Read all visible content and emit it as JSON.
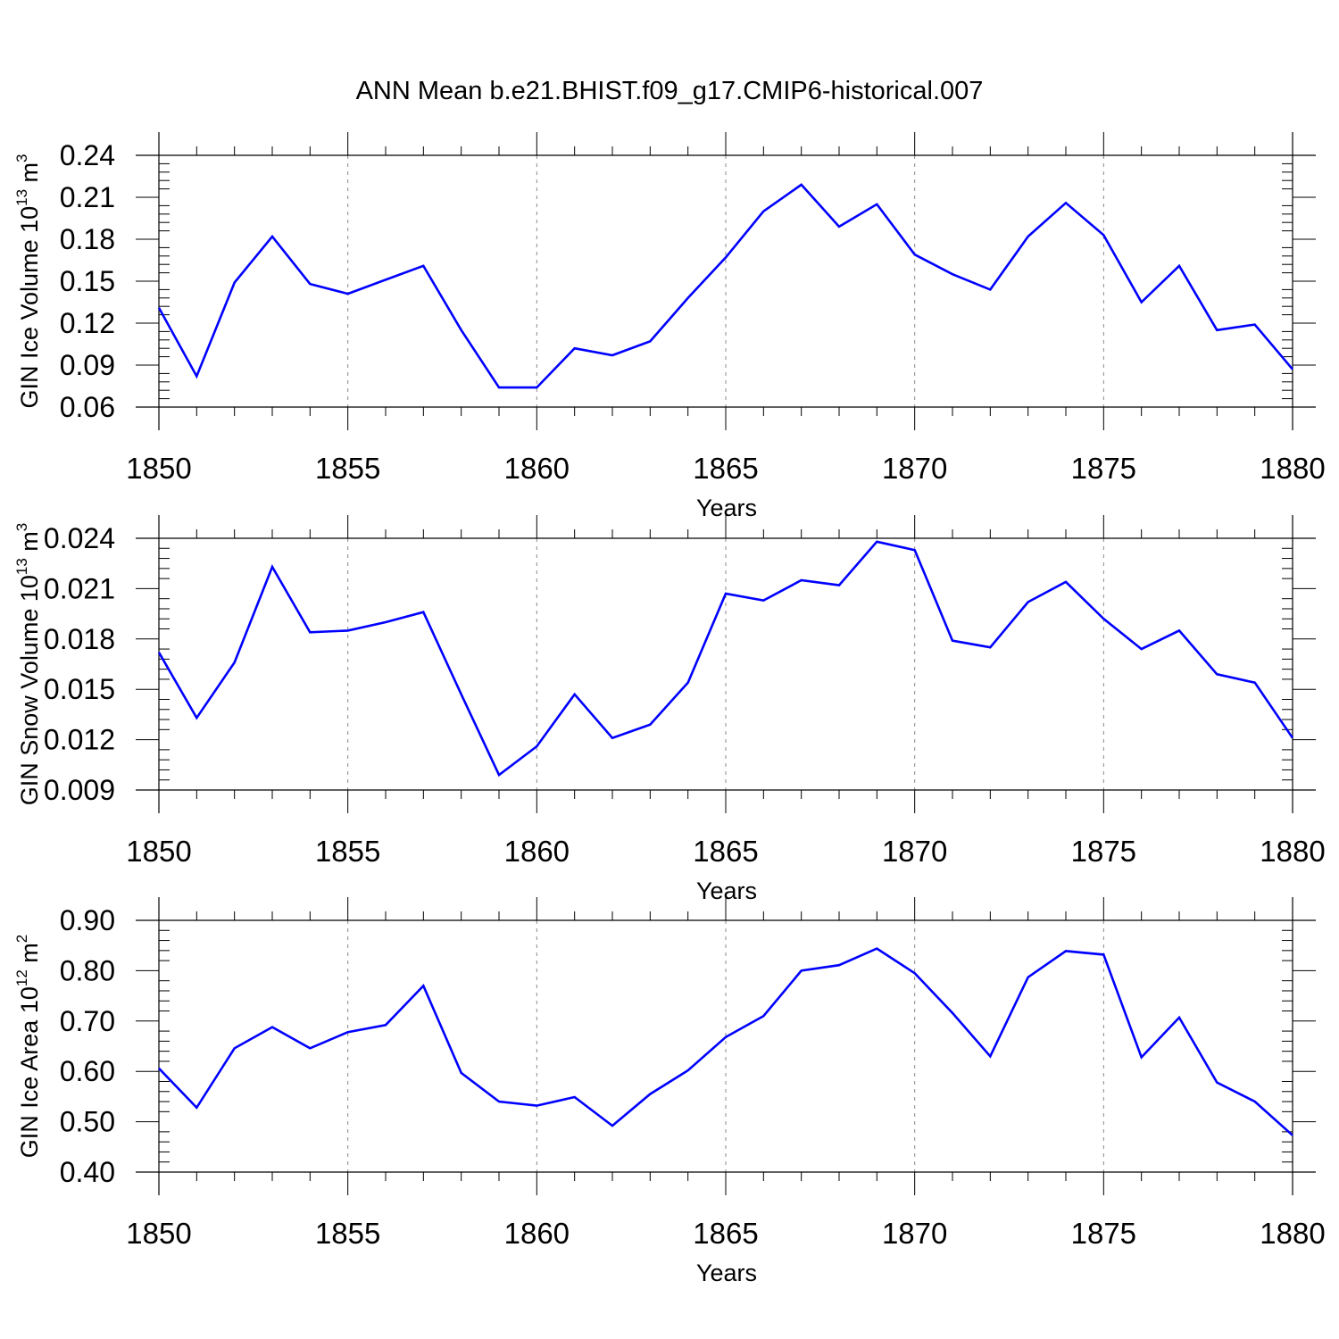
{
  "title": "ANN Mean b.e21.BHIST.f09_g17.CMIP6-historical.007",
  "chart_data": [
    {
      "type": "line",
      "ylabel": "GIN Ice Volume 10",
      "ylabel_sup": "13",
      "ylabel_unit": " m",
      "ylabel_unit_sup": "3",
      "xlabel": "Years",
      "xlim": [
        1850,
        1880
      ],
      "ylim": [
        0.06,
        0.24
      ],
      "yticks": [
        0.06,
        0.09,
        0.12,
        0.15,
        0.18,
        0.21,
        0.24
      ],
      "ytick_labels": [
        "0.06",
        "0.09",
        "0.12",
        "0.15",
        "0.18",
        "0.21",
        "0.24"
      ],
      "xticks": [
        1850,
        1855,
        1860,
        1865,
        1870,
        1875,
        1880
      ],
      "xtick_labels": [
        "1850",
        "1855",
        "1860",
        "1865",
        "1870",
        "1875",
        "1880"
      ],
      "grid": "vertical dashed at major x ticks",
      "line_color": "#0000ff",
      "x": [
        1850,
        1851,
        1852,
        1853,
        1854,
        1855,
        1856,
        1857,
        1858,
        1859,
        1860,
        1861,
        1862,
        1863,
        1864,
        1865,
        1866,
        1867,
        1868,
        1869,
        1870,
        1871,
        1872,
        1873,
        1874,
        1875,
        1876,
        1877,
        1878,
        1879,
        1880
      ],
      "values": [
        0.131,
        0.082,
        0.149,
        0.182,
        0.148,
        0.141,
        0.151,
        0.161,
        0.115,
        0.074,
        0.074,
        0.102,
        0.097,
        0.107,
        0.138,
        0.167,
        0.2,
        0.219,
        0.189,
        0.205,
        0.169,
        0.155,
        0.144,
        0.182,
        0.206,
        0.183,
        0.135,
        0.161,
        0.115,
        0.119,
        0.087
      ]
    },
    {
      "type": "line",
      "ylabel": "GIN Snow Volume 10",
      "ylabel_sup": "13",
      "ylabel_unit": " m",
      "ylabel_unit_sup": "3",
      "xlabel": "Years",
      "xlim": [
        1850,
        1880
      ],
      "ylim": [
        0.009,
        0.024
      ],
      "yticks": [
        0.009,
        0.012,
        0.015,
        0.018,
        0.021,
        0.024
      ],
      "ytick_labels": [
        "0.009",
        "0.012",
        "0.015",
        "0.018",
        "0.021",
        "0.024"
      ],
      "xticks": [
        1850,
        1855,
        1860,
        1865,
        1870,
        1875,
        1880
      ],
      "xtick_labels": [
        "1850",
        "1855",
        "1860",
        "1865",
        "1870",
        "1875",
        "1880"
      ],
      "grid": "vertical dashed at major x ticks",
      "line_color": "#0000ff",
      "x": [
        1850,
        1851,
        1852,
        1853,
        1854,
        1855,
        1856,
        1857,
        1858,
        1859,
        1860,
        1861,
        1862,
        1863,
        1864,
        1865,
        1866,
        1867,
        1868,
        1869,
        1870,
        1871,
        1872,
        1873,
        1874,
        1875,
        1876,
        1877,
        1878,
        1879,
        1880
      ],
      "values": [
        0.0172,
        0.0133,
        0.0166,
        0.0223,
        0.0184,
        0.0185,
        0.019,
        0.0196,
        0.0147,
        0.0099,
        0.0116,
        0.0147,
        0.0121,
        0.0129,
        0.0154,
        0.0207,
        0.0203,
        0.0215,
        0.0212,
        0.0238,
        0.0233,
        0.0179,
        0.0175,
        0.0202,
        0.0214,
        0.0192,
        0.0174,
        0.0185,
        0.0159,
        0.0154,
        0.0121
      ]
    },
    {
      "type": "line",
      "ylabel": "GIN Ice Area 10",
      "ylabel_sup": "12",
      "ylabel_unit": " m",
      "ylabel_unit_sup": "2",
      "xlabel": "Years",
      "xlim": [
        1850,
        1880
      ],
      "ylim": [
        0.4,
        0.9
      ],
      "yticks": [
        0.4,
        0.5,
        0.6,
        0.7,
        0.8,
        0.9
      ],
      "ytick_labels": [
        "0.40",
        "0.50",
        "0.60",
        "0.70",
        "0.80",
        "0.90"
      ],
      "xticks": [
        1850,
        1855,
        1860,
        1865,
        1870,
        1875,
        1880
      ],
      "xtick_labels": [
        "1850",
        "1855",
        "1860",
        "1865",
        "1870",
        "1875",
        "1880"
      ],
      "grid": "vertical dashed at major x ticks",
      "line_color": "#0000ff",
      "x": [
        1850,
        1851,
        1852,
        1853,
        1854,
        1855,
        1856,
        1857,
        1858,
        1859,
        1860,
        1861,
        1862,
        1863,
        1864,
        1865,
        1866,
        1867,
        1868,
        1869,
        1870,
        1871,
        1872,
        1873,
        1874,
        1875,
        1876,
        1877,
        1878,
        1879,
        1880
      ],
      "values": [
        0.606,
        0.528,
        0.646,
        0.688,
        0.646,
        0.678,
        0.692,
        0.77,
        0.597,
        0.54,
        0.532,
        0.549,
        0.492,
        0.555,
        0.602,
        0.668,
        0.71,
        0.8,
        0.811,
        0.844,
        0.795,
        0.716,
        0.63,
        0.787,
        0.839,
        0.832,
        0.628,
        0.707,
        0.578,
        0.54,
        0.473
      ]
    }
  ]
}
